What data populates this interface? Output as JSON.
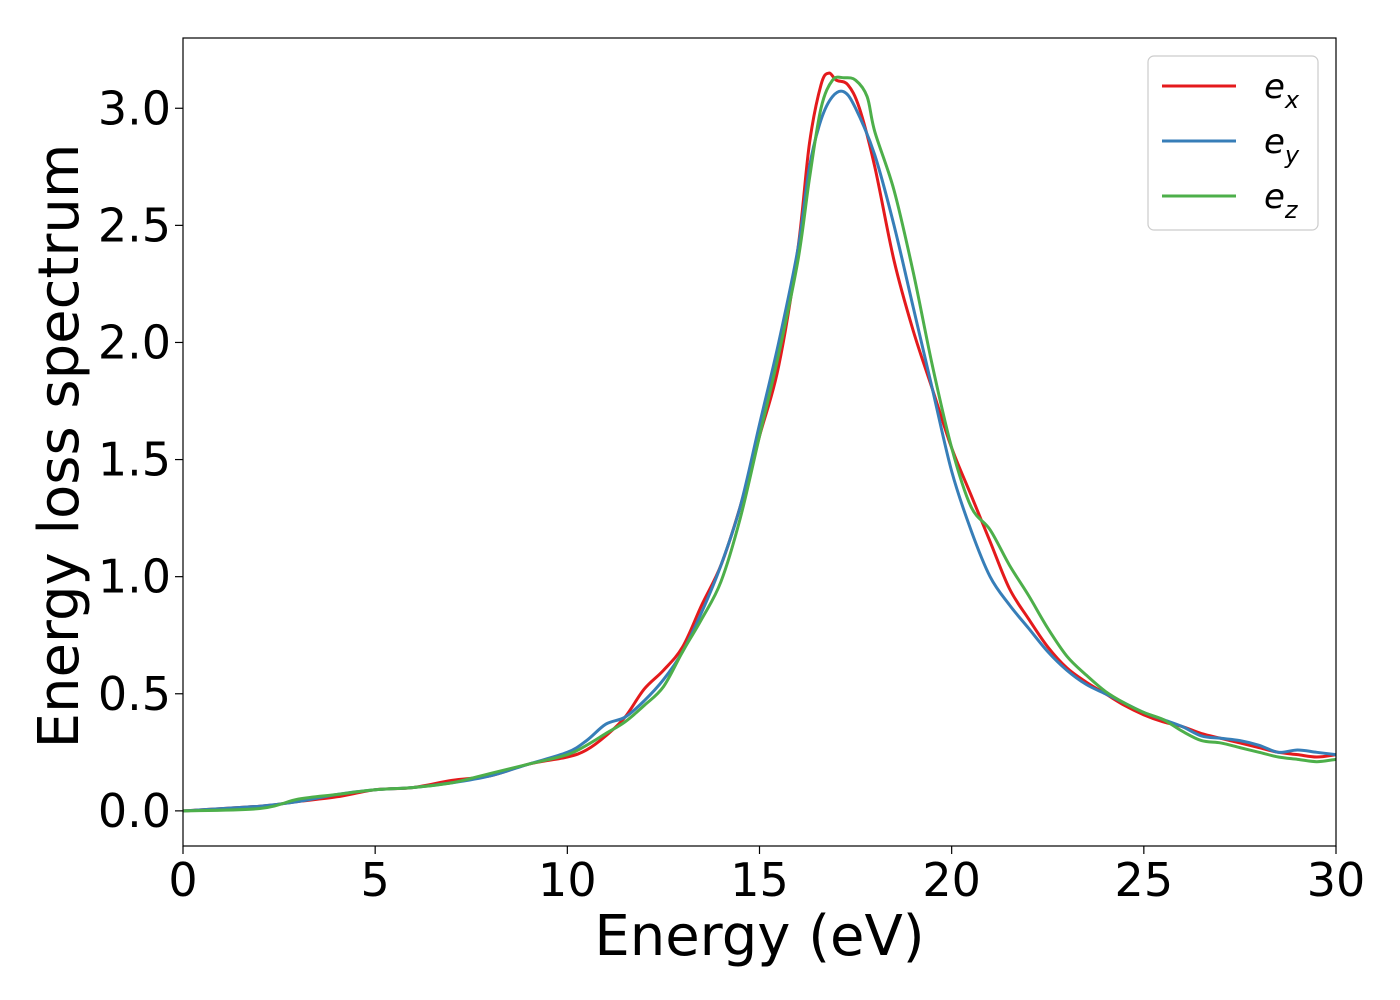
{
  "chart_data": {
    "type": "line",
    "title": "",
    "xlabel": "Energy (eV)",
    "ylabel": "Energy loss spectrum",
    "xlim": [
      0,
      30
    ],
    "ylim": [
      -0.15,
      3.3
    ],
    "xticks": [
      0,
      5,
      10,
      15,
      20,
      25,
      30
    ],
    "xtick_labels": [
      "0",
      "5",
      "10",
      "15",
      "20",
      "25",
      "30"
    ],
    "yticks": [
      0.0,
      0.5,
      1.0,
      1.5,
      2.0,
      2.5,
      3.0
    ],
    "ytick_labels": [
      "0.0",
      "0.5",
      "1.0",
      "1.5",
      "2.0",
      "2.5",
      "3.0"
    ],
    "grid": false,
    "legend_position": "top-right",
    "series": [
      {
        "name": "e_x",
        "legend_base": "e",
        "legend_sub": "x",
        "color": "#e41a1c",
        "x": [
          0,
          2,
          3,
          4,
          5,
          6,
          7,
          8,
          9,
          10,
          10.5,
          11,
          11.5,
          12,
          12.5,
          13,
          13.5,
          14,
          14.5,
          15,
          15.5,
          16,
          16.3,
          16.6,
          16.8,
          17,
          17.3,
          17.6,
          18,
          18.5,
          19,
          19.5,
          20,
          20.5,
          21,
          21.5,
          22,
          22.5,
          23,
          23.5,
          24,
          24.5,
          25,
          25.5,
          26,
          26.5,
          27,
          27.5,
          28,
          28.5,
          29,
          29.5,
          30
        ],
        "y": [
          0.0,
          0.02,
          0.04,
          0.06,
          0.09,
          0.1,
          0.13,
          0.15,
          0.2,
          0.23,
          0.26,
          0.32,
          0.4,
          0.52,
          0.6,
          0.7,
          0.88,
          1.05,
          1.3,
          1.6,
          1.9,
          2.4,
          2.85,
          3.1,
          3.15,
          3.12,
          3.1,
          3.0,
          2.75,
          2.35,
          2.05,
          1.8,
          1.55,
          1.35,
          1.15,
          0.95,
          0.82,
          0.7,
          0.61,
          0.55,
          0.5,
          0.45,
          0.41,
          0.38,
          0.36,
          0.33,
          0.31,
          0.29,
          0.27,
          0.25,
          0.24,
          0.23,
          0.24
        ]
      },
      {
        "name": "e_y",
        "legend_base": "e",
        "legend_sub": "y",
        "color": "#377eb8",
        "x": [
          0,
          2,
          3,
          4,
          5,
          6,
          7,
          8,
          9,
          10,
          10.5,
          11,
          11.5,
          12,
          12.5,
          13,
          13.5,
          14,
          14.5,
          15,
          15.5,
          16,
          16.3,
          16.6,
          16.9,
          17.2,
          17.5,
          18,
          18.5,
          19,
          19.5,
          20,
          20.5,
          21,
          21.5,
          22,
          22.5,
          23,
          23.5,
          24,
          24.5,
          25,
          25.5,
          26,
          26.5,
          27,
          27.5,
          28,
          28.5,
          29,
          29.5,
          30
        ],
        "y": [
          0.0,
          0.02,
          0.04,
          0.07,
          0.09,
          0.1,
          0.12,
          0.15,
          0.2,
          0.25,
          0.3,
          0.37,
          0.4,
          0.47,
          0.56,
          0.68,
          0.85,
          1.05,
          1.3,
          1.65,
          2.0,
          2.4,
          2.75,
          2.95,
          3.05,
          3.07,
          3.0,
          2.8,
          2.5,
          2.15,
          1.8,
          1.45,
          1.2,
          1.0,
          0.88,
          0.78,
          0.68,
          0.6,
          0.54,
          0.5,
          0.46,
          0.42,
          0.39,
          0.36,
          0.32,
          0.31,
          0.3,
          0.28,
          0.25,
          0.26,
          0.25,
          0.24
        ]
      },
      {
        "name": "e_z",
        "legend_base": "e",
        "legend_sub": "z",
        "color": "#4daf4a",
        "x": [
          0,
          2,
          3,
          4,
          5,
          6,
          7,
          8,
          9,
          10,
          10.5,
          11,
          11.5,
          12,
          12.5,
          13,
          13.5,
          14,
          14.5,
          15,
          15.5,
          16,
          16.3,
          16.6,
          16.9,
          17.2,
          17.5,
          17.8,
          18,
          18.5,
          19,
          19.5,
          20,
          20.5,
          21,
          21.5,
          22,
          22.5,
          23,
          23.5,
          24,
          24.5,
          25,
          25.5,
          26,
          26.5,
          27,
          27.5,
          28,
          28.5,
          29,
          29.5,
          30
        ],
        "y": [
          0.0,
          0.01,
          0.05,
          0.07,
          0.09,
          0.1,
          0.12,
          0.16,
          0.2,
          0.24,
          0.28,
          0.33,
          0.38,
          0.45,
          0.53,
          0.68,
          0.82,
          0.98,
          1.25,
          1.6,
          1.95,
          2.35,
          2.7,
          3.0,
          3.12,
          3.13,
          3.12,
          3.05,
          2.9,
          2.65,
          2.3,
          1.9,
          1.55,
          1.3,
          1.2,
          1.05,
          0.92,
          0.78,
          0.66,
          0.58,
          0.51,
          0.46,
          0.42,
          0.39,
          0.34,
          0.3,
          0.29,
          0.27,
          0.25,
          0.23,
          0.22,
          0.21,
          0.22
        ]
      }
    ]
  }
}
